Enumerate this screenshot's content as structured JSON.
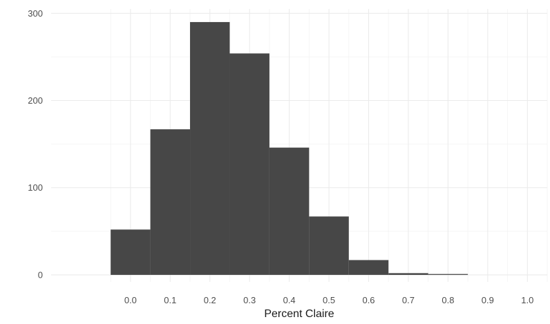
{
  "chart_data": {
    "type": "bar",
    "title": "",
    "xlabel": "Percent Claire",
    "ylabel": "",
    "bin_width": 0.1,
    "bins": [
      {
        "center": 0.0,
        "count": 52
      },
      {
        "center": 0.1,
        "count": 167
      },
      {
        "center": 0.2,
        "count": 290
      },
      {
        "center": 0.3,
        "count": 254
      },
      {
        "center": 0.4,
        "count": 146
      },
      {
        "center": 0.5,
        "count": 67
      },
      {
        "center": 0.6,
        "count": 17
      },
      {
        "center": 0.7,
        "count": 2
      },
      {
        "center": 0.8,
        "count": 1
      }
    ],
    "xlim": [
      -0.2,
      1.05
    ],
    "ylim": [
      -8,
      305
    ],
    "xticks": [
      "0.0",
      "0.1",
      "0.2",
      "0.3",
      "0.4",
      "0.5",
      "0.6",
      "0.7",
      "0.8",
      "0.9",
      "1.0"
    ],
    "yticks": [
      "0",
      "100",
      "200",
      "300"
    ],
    "bar_color": "#474747",
    "grid": true,
    "legend": "none"
  }
}
